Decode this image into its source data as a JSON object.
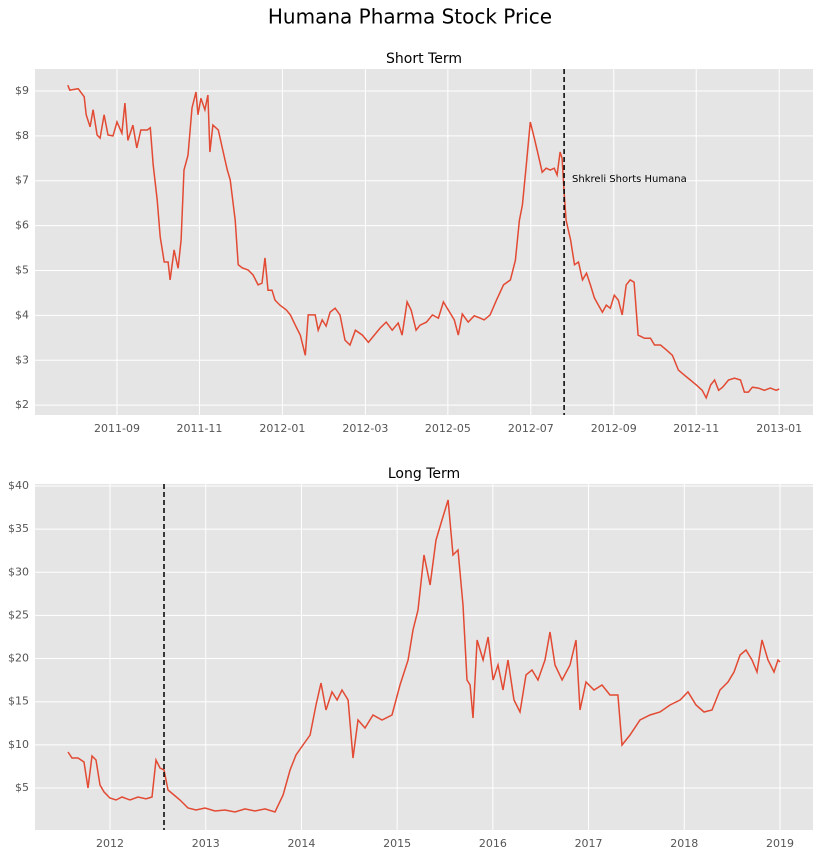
{
  "title": "Humana Pharma Stock Price",
  "chart_data": [
    {
      "type": "line",
      "title": "Short Term",
      "color": "#e24a33",
      "grid": true,
      "xlim": [
        2011.502,
        2013.068
      ],
      "ylim": [
        1.78,
        9.49
      ],
      "xticks": [
        {
          "value": 2011.667,
          "label": "2011-09"
        },
        {
          "value": 2011.833,
          "label": "2011-11"
        },
        {
          "value": 2012.0,
          "label": "2012-01"
        },
        {
          "value": 2012.167,
          "label": "2012-03"
        },
        {
          "value": 2012.333,
          "label": "2012-05"
        },
        {
          "value": 2012.5,
          "label": "2012-07"
        },
        {
          "value": 2012.667,
          "label": "2012-09"
        },
        {
          "value": 2012.833,
          "label": "2012-11"
        },
        {
          "value": 2013.0,
          "label": "2013-01"
        }
      ],
      "yticks": [
        {
          "value": 2,
          "label": "$2"
        },
        {
          "value": 3,
          "label": "$3"
        },
        {
          "value": 4,
          "label": "$4"
        },
        {
          "value": 5,
          "label": "$5"
        },
        {
          "value": 6,
          "label": "$6"
        },
        {
          "value": 7,
          "label": "$7"
        },
        {
          "value": 8,
          "label": "$8"
        },
        {
          "value": 9,
          "label": "$9"
        }
      ],
      "marker_x": 2012.567,
      "annotation": {
        "text": "Shkreli Shorts Humana",
        "x": 2012.583,
        "y": 7.04
      },
      "x": [
        2011.568,
        2011.572,
        2011.589,
        2011.601,
        2011.605,
        2011.613,
        2011.619,
        2011.627,
        2011.633,
        2011.641,
        2011.649,
        2011.659,
        2011.667,
        2011.677,
        2011.683,
        2011.689,
        2011.699,
        2011.707,
        2011.715,
        2011.728,
        2011.734,
        2011.74,
        2011.748,
        2011.754,
        2011.762,
        2011.77,
        2011.774,
        2011.782,
        2011.79,
        2011.796,
        2011.802,
        2011.81,
        2011.818,
        2011.826,
        2011.83,
        2011.836,
        2011.844,
        2011.85,
        2011.854,
        2011.86,
        2011.871,
        2011.879,
        2011.889,
        2011.895,
        2011.905,
        2011.911,
        2011.919,
        2011.931,
        2011.941,
        2011.951,
        2011.959,
        2011.965,
        2011.971,
        2011.979,
        2011.985,
        2011.995,
        2012.008,
        2012.016,
        2012.026,
        2012.036,
        2012.046,
        2012.052,
        2012.066,
        2012.072,
        2012.08,
        2012.088,
        2012.096,
        2012.106,
        2012.116,
        2012.126,
        2012.136,
        2012.147,
        2012.161,
        2012.173,
        2012.185,
        2012.197,
        2012.209,
        2012.221,
        2012.233,
        2012.241,
        2012.251,
        2012.259,
        2012.269,
        2012.277,
        2012.29,
        2012.302,
        2012.314,
        2012.324,
        2012.334,
        2012.346,
        2012.354,
        2012.362,
        2012.374,
        2012.386,
        2012.398,
        2012.406,
        2012.418,
        2012.431,
        2012.445,
        2012.459,
        2012.469,
        2012.477,
        2012.483,
        2012.491,
        2012.499,
        2012.507,
        2012.515,
        2012.523,
        2012.531,
        2012.539,
        2012.547,
        2012.553,
        2012.559,
        2012.563,
        2012.567,
        2012.571,
        2012.58,
        2012.588,
        2012.596,
        2012.604,
        2012.612,
        2012.62,
        2012.628,
        2012.636,
        2012.644,
        2012.652,
        2012.66,
        2012.668,
        2012.676,
        2012.684,
        2012.692,
        2012.7,
        2012.708,
        2012.716,
        2012.729,
        2012.741,
        2012.749,
        2012.761,
        2012.773,
        2012.785,
        2012.797,
        2012.809,
        2012.821,
        2012.833,
        2012.845,
        2012.853,
        2012.862,
        2012.87,
        2012.878,
        2012.886,
        2012.898,
        2012.91,
        2012.922,
        2012.93,
        2012.938,
        2012.946,
        2012.958,
        2012.97,
        2012.982,
        2012.994,
        2013.0
      ],
      "values": [
        9.13,
        9.02,
        9.05,
        8.87,
        8.47,
        8.2,
        8.58,
        8.02,
        7.95,
        8.47,
        8.02,
        8.0,
        8.31,
        8.06,
        8.73,
        7.9,
        8.24,
        7.73,
        8.13,
        8.13,
        8.18,
        7.35,
        6.57,
        5.75,
        5.19,
        5.19,
        4.79,
        5.46,
        5.05,
        5.68,
        7.24,
        7.57,
        8.62,
        8.98,
        8.47,
        8.84,
        8.58,
        8.91,
        7.64,
        8.24,
        8.13,
        7.73,
        7.24,
        7.02,
        6.12,
        5.13,
        5.06,
        5.01,
        4.9,
        4.68,
        4.72,
        5.28,
        4.56,
        4.56,
        4.34,
        4.23,
        4.12,
        4.01,
        3.78,
        3.56,
        3.11,
        4.01,
        4.01,
        3.67,
        3.9,
        3.76,
        4.07,
        4.16,
        4.01,
        3.45,
        3.34,
        3.67,
        3.56,
        3.4,
        3.56,
        3.72,
        3.85,
        3.67,
        3.83,
        3.56,
        4.3,
        4.12,
        3.67,
        3.78,
        3.85,
        4.01,
        3.94,
        4.3,
        4.12,
        3.9,
        3.56,
        4.03,
        3.85,
        3.99,
        3.94,
        3.9,
        4.01,
        4.34,
        4.68,
        4.79,
        5.23,
        6.12,
        6.46,
        7.35,
        8.31,
        7.95,
        7.57,
        7.19,
        7.28,
        7.24,
        7.28,
        7.13,
        7.64,
        7.5,
        6.75,
        6.12,
        5.68,
        5.13,
        5.19,
        4.79,
        4.94,
        4.68,
        4.39,
        4.23,
        4.07,
        4.23,
        4.16,
        4.45,
        4.34,
        4.01,
        4.68,
        4.79,
        4.74,
        3.56,
        3.49,
        3.49,
        3.34,
        3.34,
        3.23,
        3.11,
        2.78,
        2.67,
        2.56,
        2.45,
        2.33,
        2.16,
        2.45,
        2.56,
        2.33,
        2.4,
        2.56,
        2.6,
        2.56,
        2.29,
        2.29,
        2.4,
        2.38,
        2.33,
        2.38,
        2.33,
        2.36
      ]
    },
    {
      "type": "line",
      "title": "Long Term",
      "color": "#e24a33",
      "grid": true,
      "xlim": [
        2011.216,
        2019.345
      ],
      "ylim": [
        0.13,
        40.23
      ],
      "xticks": [
        2012,
        2013,
        2014,
        2015,
        2016,
        2017,
        2018,
        2019
      ],
      "yticks": [
        {
          "value": 5,
          "label": "$5"
        },
        {
          "value": 10,
          "label": "$10"
        },
        {
          "value": 15,
          "label": "$15"
        },
        {
          "value": 20,
          "label": "$20"
        },
        {
          "value": 25,
          "label": "$25"
        },
        {
          "value": 30,
          "label": "$30"
        },
        {
          "value": 35,
          "label": "$35"
        },
        {
          "value": 40,
          "label": "$40"
        }
      ],
      "marker_x": 2012.564,
      "x": [
        2011.561,
        2011.603,
        2011.665,
        2011.728,
        2011.77,
        2011.812,
        2011.853,
        2011.895,
        2011.937,
        2011.999,
        2012.062,
        2012.125,
        2012.209,
        2012.292,
        2012.376,
        2012.439,
        2012.48,
        2012.522,
        2012.564,
        2012.606,
        2012.668,
        2012.731,
        2012.815,
        2012.898,
        2012.992,
        2013.097,
        2013.201,
        2013.306,
        2013.41,
        2013.515,
        2013.619,
        2013.724,
        2013.808,
        2013.881,
        2013.943,
        2014.016,
        2014.09,
        2014.152,
        2014.204,
        2014.257,
        2014.319,
        2014.372,
        2014.424,
        2014.487,
        2014.539,
        2014.591,
        2014.664,
        2014.748,
        2014.842,
        2014.946,
        2015.03,
        2015.114,
        2015.166,
        2015.218,
        2015.281,
        2015.344,
        2015.406,
        2015.469,
        2015.532,
        2015.584,
        2015.636,
        2015.688,
        2015.73,
        2015.762,
        2015.793,
        2015.835,
        2015.898,
        2015.95,
        2016.002,
        2016.054,
        2016.106,
        2016.158,
        2016.221,
        2016.284,
        2016.346,
        2016.409,
        2016.472,
        2016.545,
        2016.597,
        2016.649,
        2016.723,
        2016.806,
        2016.869,
        2016.911,
        2016.973,
        2017.057,
        2017.14,
        2017.224,
        2017.307,
        2017.349,
        2017.433,
        2017.537,
        2017.642,
        2017.746,
        2017.851,
        2017.956,
        2018.039,
        2018.123,
        2018.206,
        2018.29,
        2018.373,
        2018.457,
        2018.52,
        2018.583,
        2018.645,
        2018.708,
        2018.76,
        2018.812,
        2018.875,
        2018.938,
        2018.979,
        2019.0
      ],
      "values": [
        9.17,
        8.48,
        8.48,
        8.01,
        5.0,
        8.71,
        8.24,
        5.35,
        4.54,
        3.84,
        3.61,
        3.96,
        3.61,
        3.96,
        3.73,
        3.96,
        8.24,
        7.32,
        7.09,
        4.77,
        4.19,
        3.61,
        2.68,
        2.45,
        2.68,
        2.33,
        2.45,
        2.22,
        2.57,
        2.33,
        2.57,
        2.22,
        4.19,
        7.09,
        8.82,
        9.98,
        11.14,
        14.62,
        17.17,
        14.04,
        16.13,
        15.2,
        16.36,
        15.2,
        8.48,
        12.88,
        11.95,
        13.46,
        12.88,
        13.46,
        16.94,
        19.83,
        23.31,
        25.63,
        32.0,
        28.53,
        33.74,
        36.06,
        38.38,
        32.0,
        32.58,
        26.21,
        17.52,
        16.94,
        13.11,
        22.15,
        19.83,
        22.5,
        17.52,
        19.25,
        16.36,
        19.83,
        15.2,
        13.81,
        18.1,
        18.67,
        17.52,
        19.83,
        23.08,
        19.25,
        17.52,
        19.25,
        22.15,
        14.04,
        17.28,
        16.36,
        16.94,
        15.78,
        15.78,
        9.98,
        11.14,
        12.88,
        13.46,
        13.81,
        14.62,
        15.2,
        16.13,
        14.62,
        13.81,
        14.04,
        16.36,
        17.28,
        18.44,
        20.41,
        20.99,
        19.83,
        18.44,
        22.15,
        19.83,
        18.44,
        19.83,
        19.6
      ]
    }
  ]
}
